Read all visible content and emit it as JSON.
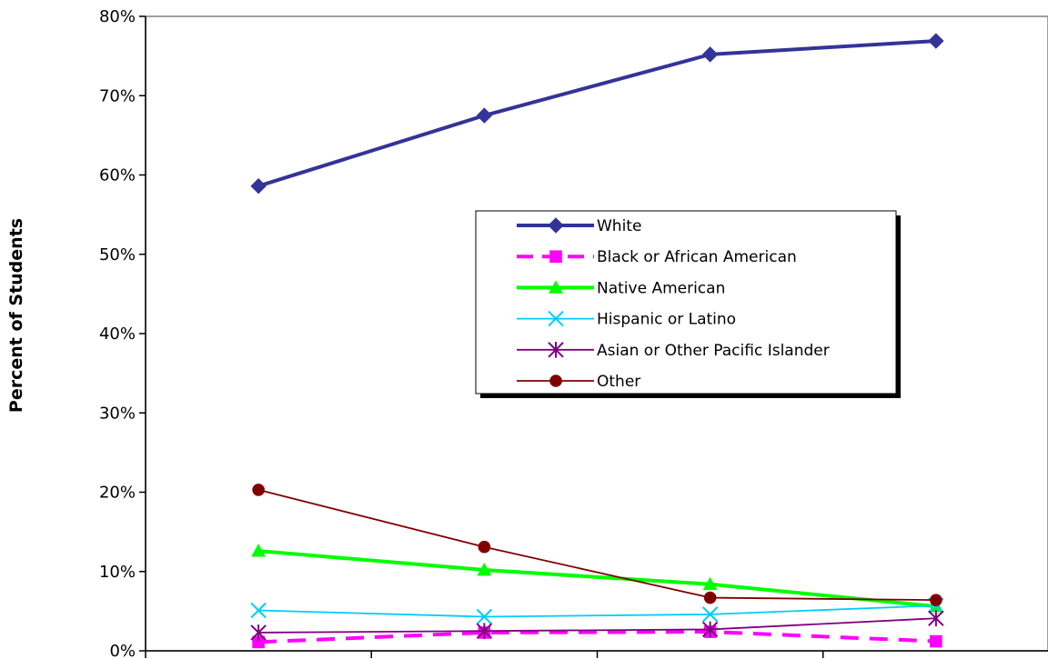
{
  "chart_data": {
    "type": "line",
    "title": "",
    "xlabel": "",
    "ylabel": "Percent of Students",
    "ylim": [
      0,
      80
    ],
    "y_ticks": [
      "0%",
      "10%",
      "20%",
      "30%",
      "40%",
      "50%",
      "60%",
      "70%",
      "80%"
    ],
    "x_categories_count": 4,
    "grid": false,
    "legend_position": "center-right",
    "series": [
      {
        "name": "White",
        "values": [
          58.6,
          67.5,
          75.2,
          76.9
        ],
        "color": "#333399",
        "marker": "diamond",
        "dash": "solid"
      },
      {
        "name": "Black or African American",
        "values": [
          1.1,
          2.3,
          2.4,
          1.2
        ],
        "color": "#FF00FF",
        "marker": "square",
        "dash": "dashed"
      },
      {
        "name": "Native American",
        "values": [
          12.6,
          10.2,
          8.4,
          5.6
        ],
        "color": "#00FF00",
        "marker": "triangle",
        "dash": "solid"
      },
      {
        "name": "Hispanic or Latino",
        "values": [
          5.1,
          4.3,
          4.6,
          5.7
        ],
        "color": "#00CCFF",
        "marker": "x",
        "dash": "solid"
      },
      {
        "name": "Asian or Other Pacific Islander",
        "values": [
          2.3,
          2.5,
          2.7,
          4.1
        ],
        "color": "#800080",
        "marker": "star",
        "dash": "solid"
      },
      {
        "name": "Other",
        "values": [
          20.3,
          13.1,
          6.7,
          6.4
        ],
        "color": "#800000",
        "marker": "circle",
        "dash": "solid"
      }
    ]
  }
}
